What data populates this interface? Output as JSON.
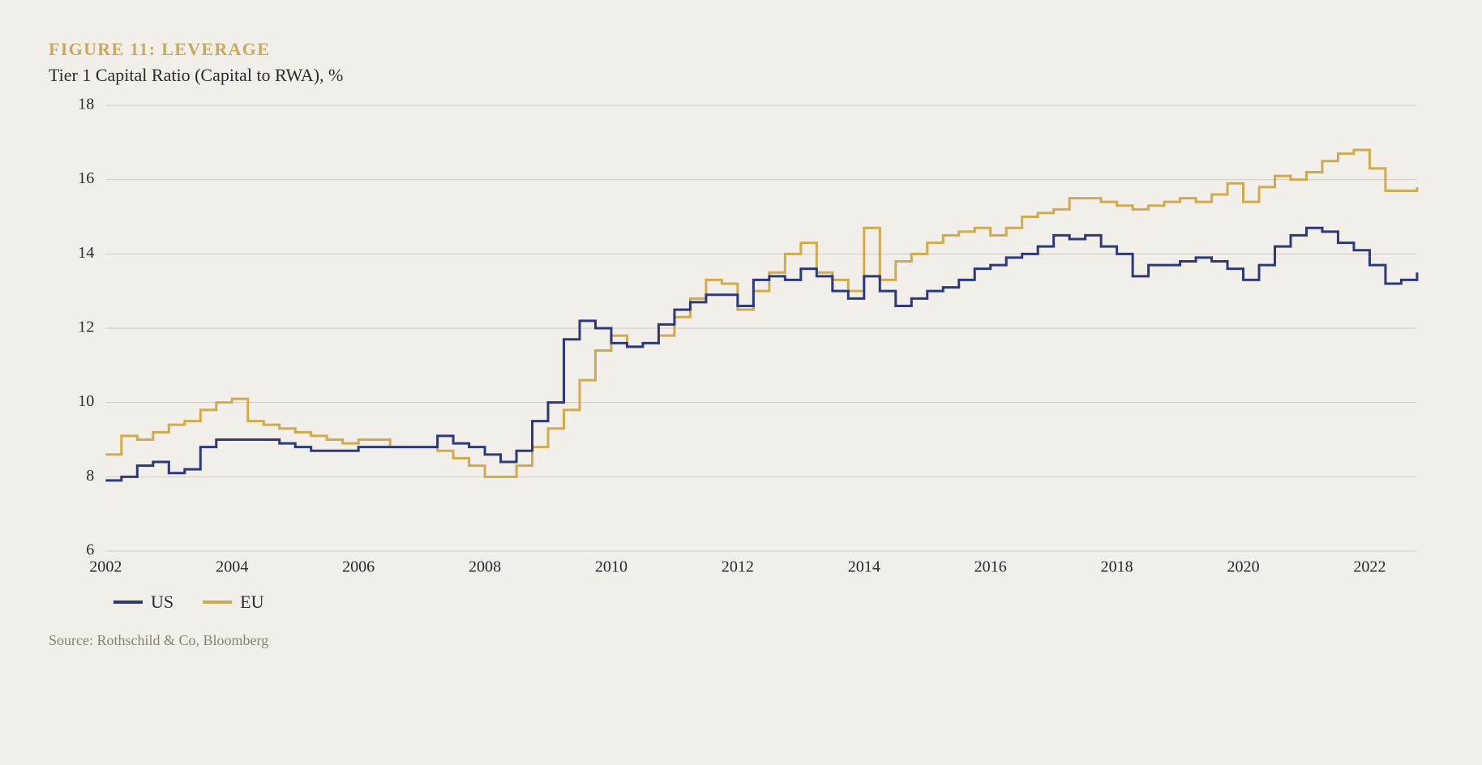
{
  "figure_label": "FIGURE 11: LEVERAGE",
  "subtitle": "Tier 1 Capital Ratio (Capital to RWA), %",
  "source": "Source: Rothschild & Co, Bloomberg",
  "chart": {
    "type": "line",
    "background_color": "#f2efea",
    "grid_color": "#cfcac1",
    "axis_font_size": 20,
    "line_width": 3,
    "ylim": [
      6,
      18
    ],
    "ytick_step": 2,
    "yticks": [
      6,
      8,
      10,
      12,
      14,
      16,
      18
    ],
    "xlim": [
      2002,
      2022.75
    ],
    "xticks": [
      2002,
      2004,
      2006,
      2008,
      2010,
      2012,
      2014,
      2016,
      2018,
      2020,
      2022
    ],
    "legend": [
      {
        "name": "US",
        "color": "#2c3a7a"
      },
      {
        "name": "EU",
        "color": "#d0aa4f"
      }
    ],
    "series": {
      "us": {
        "color": "#2c3a7a",
        "data": [
          [
            2002.0,
            7.9
          ],
          [
            2002.25,
            8.0
          ],
          [
            2002.5,
            8.3
          ],
          [
            2002.75,
            8.4
          ],
          [
            2003.0,
            8.1
          ],
          [
            2003.25,
            8.2
          ],
          [
            2003.5,
            8.8
          ],
          [
            2003.75,
            9.0
          ],
          [
            2004.0,
            9.0
          ],
          [
            2004.25,
            9.0
          ],
          [
            2004.5,
            9.0
          ],
          [
            2004.75,
            8.9
          ],
          [
            2005.0,
            8.8
          ],
          [
            2005.25,
            8.7
          ],
          [
            2005.5,
            8.7
          ],
          [
            2005.75,
            8.7
          ],
          [
            2006.0,
            8.8
          ],
          [
            2006.25,
            8.8
          ],
          [
            2006.5,
            8.8
          ],
          [
            2006.75,
            8.8
          ],
          [
            2007.0,
            8.8
          ],
          [
            2007.25,
            9.1
          ],
          [
            2007.5,
            8.9
          ],
          [
            2007.75,
            8.8
          ],
          [
            2008.0,
            8.6
          ],
          [
            2008.25,
            8.4
          ],
          [
            2008.5,
            8.7
          ],
          [
            2008.75,
            9.5
          ],
          [
            2009.0,
            10.0
          ],
          [
            2009.25,
            11.7
          ],
          [
            2009.5,
            12.2
          ],
          [
            2009.75,
            12.0
          ],
          [
            2010.0,
            11.6
          ],
          [
            2010.25,
            11.5
          ],
          [
            2010.5,
            11.6
          ],
          [
            2010.75,
            12.1
          ],
          [
            2011.0,
            12.5
          ],
          [
            2011.25,
            12.7
          ],
          [
            2011.5,
            12.9
          ],
          [
            2011.75,
            12.9
          ],
          [
            2012.0,
            12.6
          ],
          [
            2012.25,
            13.3
          ],
          [
            2012.5,
            13.4
          ],
          [
            2012.75,
            13.3
          ],
          [
            2013.0,
            13.6
          ],
          [
            2013.25,
            13.4
          ],
          [
            2013.5,
            13.0
          ],
          [
            2013.75,
            12.8
          ],
          [
            2014.0,
            13.4
          ],
          [
            2014.25,
            13.0
          ],
          [
            2014.5,
            12.6
          ],
          [
            2014.75,
            12.8
          ],
          [
            2015.0,
            13.0
          ],
          [
            2015.25,
            13.1
          ],
          [
            2015.5,
            13.3
          ],
          [
            2015.75,
            13.6
          ],
          [
            2016.0,
            13.7
          ],
          [
            2016.25,
            13.9
          ],
          [
            2016.5,
            14.0
          ],
          [
            2016.75,
            14.2
          ],
          [
            2017.0,
            14.5
          ],
          [
            2017.25,
            14.4
          ],
          [
            2017.5,
            14.5
          ],
          [
            2017.75,
            14.2
          ],
          [
            2018.0,
            14.0
          ],
          [
            2018.25,
            13.4
          ],
          [
            2018.5,
            13.7
          ],
          [
            2018.75,
            13.7
          ],
          [
            2019.0,
            13.8
          ],
          [
            2019.25,
            13.9
          ],
          [
            2019.5,
            13.8
          ],
          [
            2019.75,
            13.6
          ],
          [
            2020.0,
            13.3
          ],
          [
            2020.25,
            13.7
          ],
          [
            2020.5,
            14.2
          ],
          [
            2020.75,
            14.5
          ],
          [
            2021.0,
            14.7
          ],
          [
            2021.25,
            14.6
          ],
          [
            2021.5,
            14.3
          ],
          [
            2021.75,
            14.1
          ],
          [
            2022.0,
            13.7
          ],
          [
            2022.25,
            13.2
          ],
          [
            2022.5,
            13.3
          ],
          [
            2022.75,
            13.5
          ]
        ]
      },
      "eu": {
        "color": "#d0aa4f",
        "data": [
          [
            2002.0,
            8.6
          ],
          [
            2002.25,
            9.1
          ],
          [
            2002.5,
            9.0
          ],
          [
            2002.75,
            9.2
          ],
          [
            2003.0,
            9.4
          ],
          [
            2003.25,
            9.5
          ],
          [
            2003.5,
            9.8
          ],
          [
            2003.75,
            10.0
          ],
          [
            2004.0,
            10.1
          ],
          [
            2004.25,
            9.5
          ],
          [
            2004.5,
            9.4
          ],
          [
            2004.75,
            9.3
          ],
          [
            2005.0,
            9.2
          ],
          [
            2005.25,
            9.1
          ],
          [
            2005.5,
            9.0
          ],
          [
            2005.75,
            8.9
          ],
          [
            2006.0,
            9.0
          ],
          [
            2006.25,
            9.0
          ],
          [
            2006.5,
            8.8
          ],
          [
            2006.75,
            8.8
          ],
          [
            2007.0,
            8.8
          ],
          [
            2007.25,
            8.7
          ],
          [
            2007.5,
            8.5
          ],
          [
            2007.75,
            8.3
          ],
          [
            2008.0,
            8.0
          ],
          [
            2008.25,
            8.0
          ],
          [
            2008.5,
            8.3
          ],
          [
            2008.75,
            8.8
          ],
          [
            2009.0,
            9.3
          ],
          [
            2009.25,
            9.8
          ],
          [
            2009.5,
            10.6
          ],
          [
            2009.75,
            11.4
          ],
          [
            2010.0,
            11.8
          ],
          [
            2010.25,
            11.5
          ],
          [
            2010.5,
            11.6
          ],
          [
            2010.75,
            11.8
          ],
          [
            2011.0,
            12.3
          ],
          [
            2011.25,
            12.8
          ],
          [
            2011.5,
            13.3
          ],
          [
            2011.75,
            13.2
          ],
          [
            2012.0,
            12.5
          ],
          [
            2012.25,
            13.0
          ],
          [
            2012.5,
            13.5
          ],
          [
            2012.75,
            14.0
          ],
          [
            2013.0,
            14.3
          ],
          [
            2013.25,
            13.5
          ],
          [
            2013.5,
            13.3
          ],
          [
            2013.75,
            13.0
          ],
          [
            2014.0,
            14.7
          ],
          [
            2014.25,
            13.3
          ],
          [
            2014.5,
            13.8
          ],
          [
            2014.75,
            14.0
          ],
          [
            2015.0,
            14.3
          ],
          [
            2015.25,
            14.5
          ],
          [
            2015.5,
            14.6
          ],
          [
            2015.75,
            14.7
          ],
          [
            2016.0,
            14.5
          ],
          [
            2016.25,
            14.7
          ],
          [
            2016.5,
            15.0
          ],
          [
            2016.75,
            15.1
          ],
          [
            2017.0,
            15.2
          ],
          [
            2017.25,
            15.5
          ],
          [
            2017.5,
            15.5
          ],
          [
            2017.75,
            15.4
          ],
          [
            2018.0,
            15.3
          ],
          [
            2018.25,
            15.2
          ],
          [
            2018.5,
            15.3
          ],
          [
            2018.75,
            15.4
          ],
          [
            2019.0,
            15.5
          ],
          [
            2019.25,
            15.4
          ],
          [
            2019.5,
            15.6
          ],
          [
            2019.75,
            15.9
          ],
          [
            2020.0,
            15.4
          ],
          [
            2020.25,
            15.8
          ],
          [
            2020.5,
            16.1
          ],
          [
            2020.75,
            16.0
          ],
          [
            2021.0,
            16.2
          ],
          [
            2021.25,
            16.5
          ],
          [
            2021.5,
            16.7
          ],
          [
            2021.75,
            16.8
          ],
          [
            2022.0,
            16.3
          ],
          [
            2022.25,
            15.7
          ],
          [
            2022.5,
            15.7
          ],
          [
            2022.75,
            15.8
          ]
        ]
      }
    }
  }
}
